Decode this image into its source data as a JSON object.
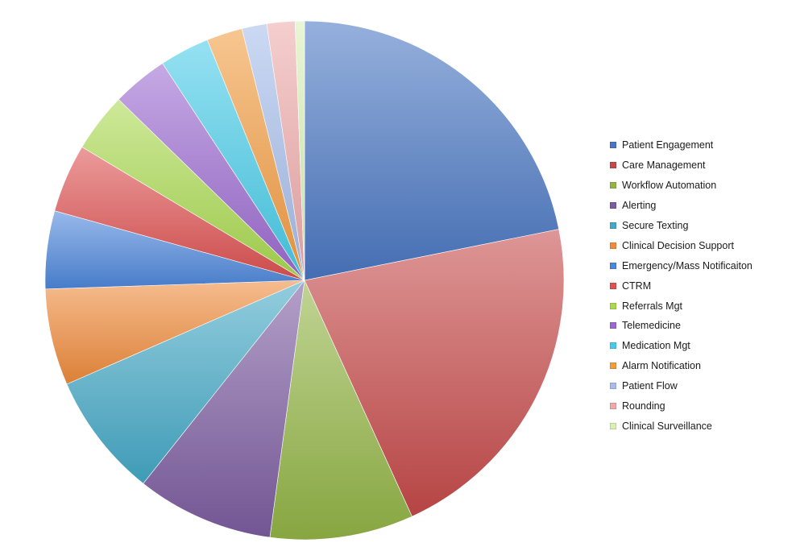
{
  "chart_data": {
    "type": "pie",
    "title": "",
    "start_angle_deg": 90,
    "direction": "clockwise",
    "legend_position": "right",
    "slices": [
      {
        "label": "Patient Engagement",
        "value": 22.5,
        "color": "#4a76c2"
      },
      {
        "label": "Care Management",
        "value": 22.0,
        "color": "#c64a4a"
      },
      {
        "label": "Workflow Automation",
        "value": 9.2,
        "color": "#93b446"
      },
      {
        "label": "Alerting",
        "value": 8.8,
        "color": "#7c5ca0"
      },
      {
        "label": "Secure Texting",
        "value": 8.0,
        "color": "#44a8c6"
      },
      {
        "label": "Clinical Decision Support",
        "value": 6.2,
        "color": "#ef8b3c"
      },
      {
        "label": "Emergency/Mass Notificaiton",
        "value": 5.0,
        "color": "#4d87db"
      },
      {
        "label": "CTRM",
        "value": 4.4,
        "color": "#de5252"
      },
      {
        "label": "Referrals Mgt",
        "value": 3.8,
        "color": "#aad950"
      },
      {
        "label": "Telemedicine",
        "value": 3.6,
        "color": "#9b6ad0"
      },
      {
        "label": "Medication Mgt",
        "value": 3.2,
        "color": "#48cbe8"
      },
      {
        "label": "Alarm Notification",
        "value": 2.3,
        "color": "#f29c42"
      },
      {
        "label": "Patient Flow",
        "value": 1.6,
        "color": "#a6bdea"
      },
      {
        "label": "Rounding",
        "value": 1.8,
        "color": "#eeaaaa"
      },
      {
        "label": "Clinical Surveillance",
        "value": 0.6,
        "color": "#d8f0b4"
      }
    ]
  }
}
